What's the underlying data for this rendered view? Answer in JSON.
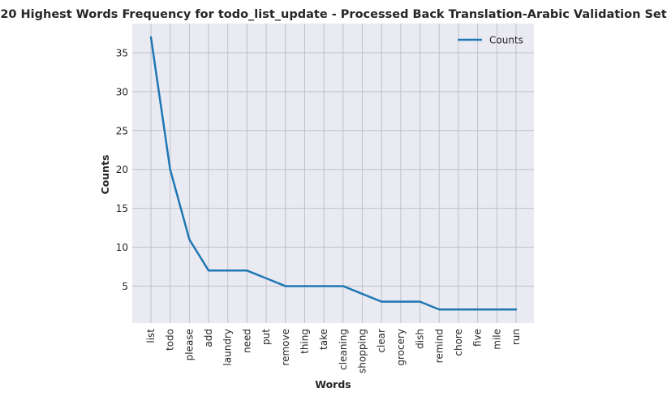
{
  "chart_data": {
    "type": "line",
    "title": "20 Highest Words Frequency for todo_list_update - Processed Back Translation-Arabic Validation Set",
    "xlabel": "Words",
    "ylabel": "Counts",
    "categories": [
      "list",
      "todo",
      "please",
      "add",
      "laundry",
      "need",
      "put",
      "remove",
      "thing",
      "take",
      "cleaning",
      "shopping",
      "clear",
      "grocery",
      "dish",
      "remind",
      "chore",
      "five",
      "mile",
      "run"
    ],
    "series": [
      {
        "name": "Counts",
        "values": [
          37,
          20,
          11,
          7,
          7,
          7,
          6,
          5,
          5,
          5,
          5,
          4,
          3,
          3,
          3,
          2,
          2,
          2,
          2,
          2
        ],
        "color": "#1f77b4"
      }
    ],
    "yticks": [
      5,
      10,
      15,
      20,
      25,
      30,
      35
    ],
    "ylim": [
      0.25,
      38.75
    ],
    "grid": true,
    "legend": "top-right",
    "background": "#eaeaf2",
    "grid_color": "#c0c0c8"
  }
}
